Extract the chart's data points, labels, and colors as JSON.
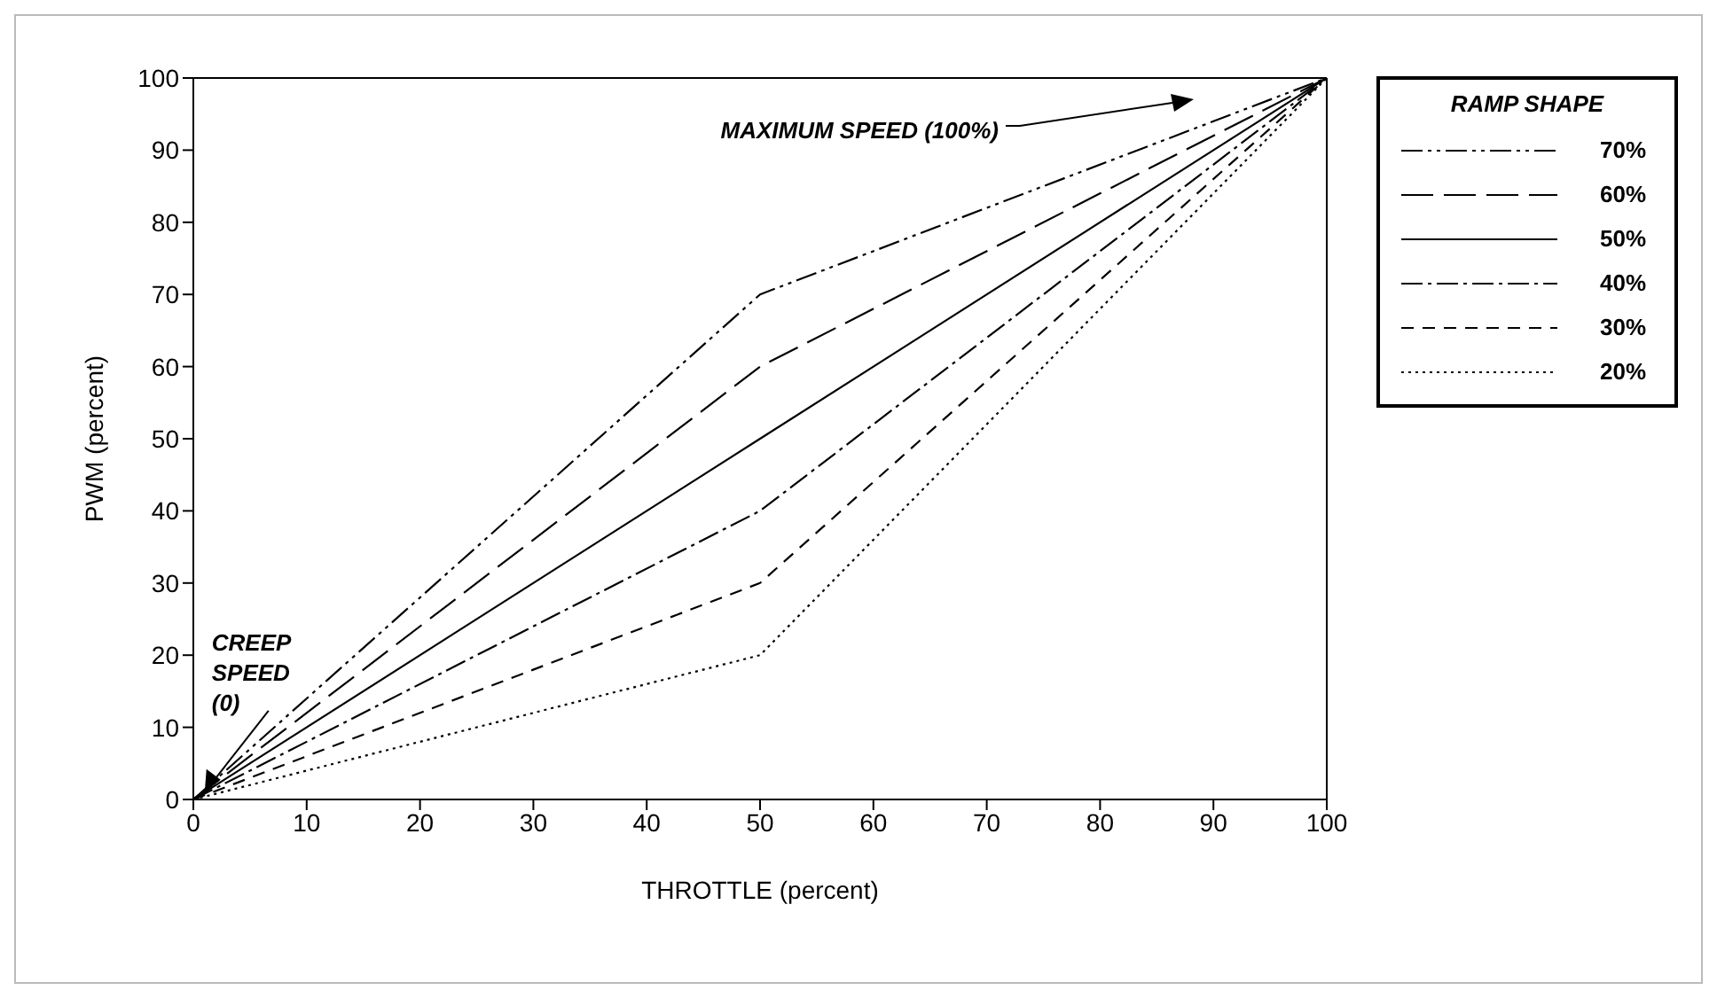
{
  "chart_data": {
    "type": "line",
    "xlabel": "THROTTLE  (percent)",
    "ylabel": "PWM  (percent)",
    "legend_title": "RAMP SHAPE",
    "x": [
      0,
      50,
      100
    ],
    "series": [
      {
        "name": "70%",
        "color": "#000000",
        "line_style": "dashdotdot",
        "values": [
          0,
          70,
          100
        ]
      },
      {
        "name": "60%",
        "color": "#000000",
        "line_style": "longdash",
        "values": [
          0,
          60,
          100
        ]
      },
      {
        "name": "50%",
        "color": "#000000",
        "line_style": "solid",
        "values": [
          0,
          50,
          100
        ]
      },
      {
        "name": "40%",
        "color": "#000000",
        "line_style": "dashdot",
        "values": [
          0,
          40,
          100
        ]
      },
      {
        "name": "30%",
        "color": "#000000",
        "line_style": "dashed",
        "values": [
          0,
          30,
          100
        ]
      },
      {
        "name": "20%",
        "color": "#000000",
        "line_style": "dotted",
        "values": [
          0,
          20,
          100
        ]
      }
    ],
    "xlim": [
      0,
      100
    ],
    "ylim": [
      0,
      100
    ],
    "xticks": [
      0,
      10,
      20,
      30,
      40,
      50,
      60,
      70,
      80,
      90,
      100
    ],
    "yticks": [
      0,
      10,
      20,
      30,
      40,
      50,
      60,
      70,
      80,
      90,
      100
    ],
    "grid": false,
    "legend": "top right",
    "marker": "none",
    "annotations": [
      "MAXIMUM SPEED  (100%)",
      {
        "text": "CREEP SPEED (0)",
        "x": 1,
        "y": 1
      }
    ]
  }
}
